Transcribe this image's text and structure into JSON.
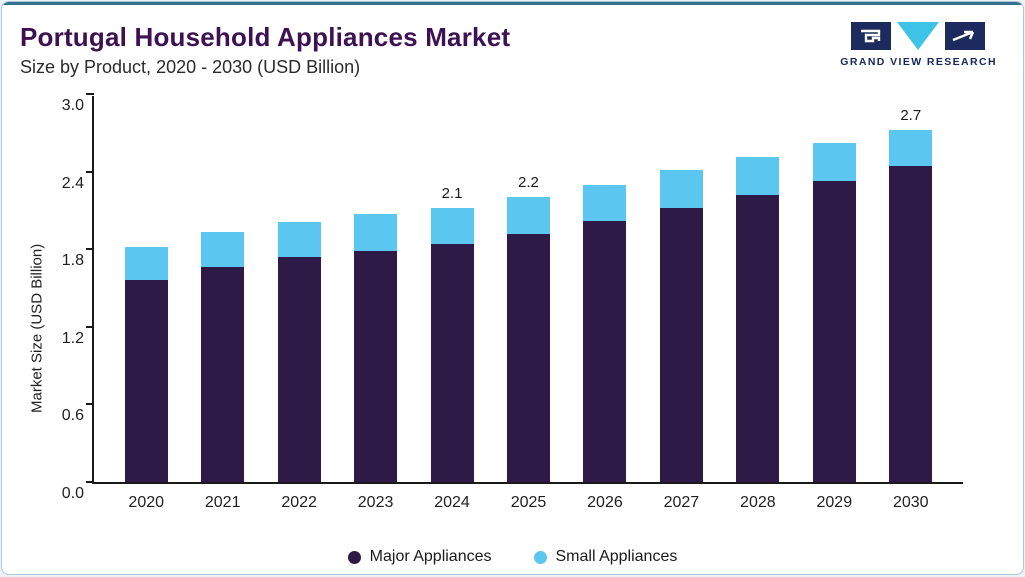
{
  "page": {
    "title": "Portugal Household Appliances Market",
    "subtitle": "Size by Product, 2020 - 2030 (USD Billion)"
  },
  "logo": {
    "text": "GRAND VIEW RESEARCH",
    "navy": "#1c2a5e",
    "cyan": "#3cc3e6"
  },
  "chart_data": {
    "type": "bar",
    "stacked": true,
    "title": "Portugal Household Appliances Market Size by Product, 2020 - 2030 (USD Billion)",
    "categories": [
      "2020",
      "2021",
      "2022",
      "2023",
      "2024",
      "2025",
      "2026",
      "2027",
      "2028",
      "2029",
      "2030"
    ],
    "series": [
      {
        "name": "Major Appliances",
        "color": "#2e1a47",
        "values": [
          1.56,
          1.66,
          1.74,
          1.79,
          1.84,
          1.92,
          2.02,
          2.12,
          2.22,
          2.33,
          2.44
        ]
      },
      {
        "name": "Small Appliances",
        "color": "#5bc6f0",
        "values": [
          0.26,
          0.27,
          0.27,
          0.28,
          0.28,
          0.28,
          0.28,
          0.29,
          0.29,
          0.29,
          0.28
        ]
      }
    ],
    "totals": [
      1.82,
      1.93,
      2.01,
      2.07,
      2.12,
      2.2,
      2.3,
      2.41,
      2.51,
      2.62,
      2.72
    ],
    "bar_labels": [
      "",
      "",
      "",
      "",
      "2.1",
      "2.2",
      "",
      "",
      "",
      "",
      "2.7"
    ],
    "ylabel": "Market Size (USD Billion)",
    "ylim": [
      0,
      3.0
    ],
    "yticks": [
      0.0,
      0.6,
      1.2,
      1.8,
      2.4,
      3.0
    ],
    "grid": false,
    "legend_position": "bottom"
  }
}
